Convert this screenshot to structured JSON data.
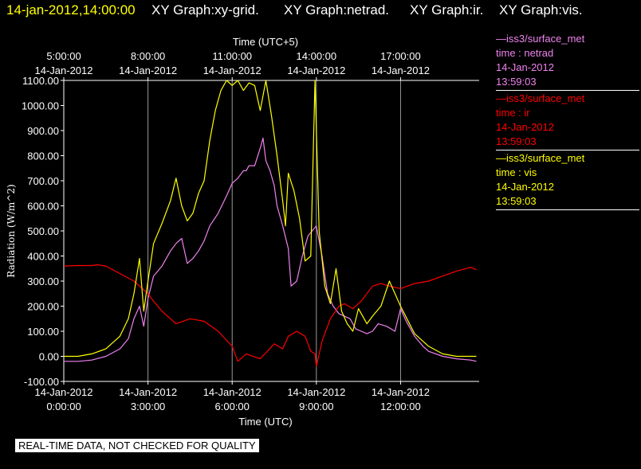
{
  "header": {
    "timestamp": "14-jan-2012,14:00:00",
    "graphs": [
      "XY Graph:xy-grid.",
      "XY Graph:netrad.",
      "XY Graph:ir.",
      "XY Graph:vis."
    ]
  },
  "legend": [
    {
      "name": "—iss3/surface_met",
      "var": "time : netrad",
      "date": "14-Jan-2012",
      "time": "13:59:03",
      "color": "#ee82ee"
    },
    {
      "name": "—iss3/surface_met",
      "var": "time : ir",
      "date": "14-Jan-2012",
      "time": "13:59:03",
      "color": "#ff0000"
    },
    {
      "name": "—iss3/surface_met",
      "var": "time : vis",
      "date": "14-Jan-2012",
      "time": "13:59:03",
      "color": "#ffff00"
    }
  ],
  "footer": {
    "note": "REAL-TIME DATA, NOT CHECKED FOR QUALITY"
  },
  "colors": {
    "background": "#000000",
    "axes": "#ffffff",
    "header_timestamp": "#ffff00",
    "header_graphs": "#ffffff"
  },
  "chart_data": {
    "type": "line",
    "xlabel": "Time (UTC)",
    "x2label": "Time (UTC+5)",
    "ylabel": "Radiation (W/m^2)",
    "xlim": [
      0,
      14.8
    ],
    "ylim": [
      -100,
      1100
    ],
    "grid": true,
    "yticks": [
      -100,
      0,
      100,
      200,
      300,
      400,
      500,
      600,
      700,
      800,
      900,
      1000,
      1100
    ],
    "ytick_labels": [
      "-100.00",
      "0.00",
      "100.00",
      "200.00",
      "300.00",
      "400.00",
      "500.00",
      "600.00",
      "700.00",
      "800.00",
      "900.00",
      "1000.00",
      "1100.00"
    ],
    "xticks": [
      {
        "x": 0,
        "date": "14-Jan-2012",
        "time": "0:00:00"
      },
      {
        "x": 3,
        "date": "14-Jan-2012",
        "time": "3:00:00"
      },
      {
        "x": 6,
        "date": "14-Jan-2012",
        "time": "6:00:00"
      },
      {
        "x": 9,
        "date": "14-Jan-2012",
        "time": "9:00:00"
      },
      {
        "x": 12,
        "date": "14-Jan-2012",
        "time": "12:00:00"
      }
    ],
    "x2ticks": [
      {
        "x": 0,
        "time": "5:00:00",
        "date": "14-Jan-2012"
      },
      {
        "x": 3,
        "time": "8:00:00",
        "date": "14-Jan-2012"
      },
      {
        "x": 6,
        "time": "11:00:00",
        "date": "14-Jan-2012"
      },
      {
        "x": 9,
        "time": "14:00:00",
        "date": "14-Jan-2012"
      },
      {
        "x": 12,
        "time": "17:00:00",
        "date": "14-Jan-2012"
      }
    ],
    "series": [
      {
        "name": "netrad",
        "color": "#ee82ee",
        "x": [
          0,
          0.5,
          1.0,
          1.5,
          2.0,
          2.3,
          2.5,
          2.7,
          2.85,
          3.0,
          3.2,
          3.5,
          3.8,
          4.0,
          4.2,
          4.4,
          4.6,
          4.8,
          5.0,
          5.2,
          5.5,
          5.8,
          6.0,
          6.2,
          6.4,
          6.5,
          6.6,
          6.8,
          7.0,
          7.1,
          7.2,
          7.35,
          7.5,
          7.6,
          7.8,
          8.0,
          8.1,
          8.3,
          8.5,
          8.7,
          8.85,
          9.0,
          9.2,
          9.4,
          9.6,
          9.8,
          10.0,
          10.2,
          10.4,
          10.6,
          10.8,
          11.0,
          11.2,
          11.5,
          11.8,
          12.0,
          12.2,
          12.5,
          12.8,
          13.0,
          13.5,
          14.0,
          14.5,
          14.7
        ],
        "y": [
          -20,
          -20,
          -15,
          0,
          30,
          70,
          150,
          200,
          120,
          230,
          320,
          360,
          420,
          450,
          470,
          370,
          390,
          420,
          460,
          520,
          570,
          640,
          690,
          710,
          740,
          740,
          760,
          760,
          830,
          870,
          780,
          740,
          680,
          600,
          520,
          430,
          280,
          300,
          400,
          480,
          500,
          520,
          400,
          250,
          200,
          170,
          160,
          150,
          110,
          100,
          90,
          100,
          130,
          120,
          100,
          190,
          140,
          80,
          40,
          20,
          0,
          -10,
          -15,
          -20
        ]
      },
      {
        "name": "ir",
        "color": "#ff0000",
        "x": [
          0,
          0.5,
          1.0,
          1.2,
          1.5,
          2.0,
          2.5,
          2.8,
          3.0,
          3.2,
          3.5,
          4.0,
          4.5,
          5.0,
          5.5,
          6.0,
          6.2,
          6.5,
          7.0,
          7.5,
          7.8,
          8.0,
          8.3,
          8.6,
          8.8,
          8.95,
          9.0,
          9.2,
          9.5,
          9.8,
          10.0,
          10.3,
          10.6,
          11.0,
          11.3,
          11.6,
          12.0,
          12.5,
          13.0,
          13.5,
          14.0,
          14.5,
          14.7
        ],
        "y": [
          360,
          362,
          362,
          365,
          360,
          330,
          300,
          270,
          250,
          220,
          180,
          130,
          150,
          140,
          100,
          40,
          -20,
          10,
          -10,
          50,
          30,
          80,
          100,
          80,
          20,
          10,
          -40,
          60,
          150,
          200,
          210,
          190,
          220,
          280,
          290,
          280,
          270,
          290,
          300,
          320,
          340,
          355,
          345
        ]
      },
      {
        "name": "vis",
        "color": "#ffff00",
        "x": [
          0,
          0.5,
          1.0,
          1.5,
          2.0,
          2.3,
          2.5,
          2.7,
          2.85,
          3.0,
          3.2,
          3.5,
          3.8,
          4.0,
          4.2,
          4.4,
          4.6,
          4.8,
          5.0,
          5.2,
          5.4,
          5.6,
          5.8,
          6.0,
          6.2,
          6.4,
          6.6,
          6.8,
          7.0,
          7.2,
          7.4,
          7.6,
          7.8,
          7.9,
          8.0,
          8.2,
          8.4,
          8.6,
          8.8,
          8.95,
          9.1,
          9.3,
          9.5,
          9.7,
          9.9,
          10.1,
          10.3,
          10.5,
          10.8,
          11.0,
          11.3,
          11.6,
          12.0,
          12.5,
          13.0,
          13.5,
          14.0,
          14.5,
          14.7
        ],
        "y": [
          0,
          0,
          10,
          30,
          80,
          150,
          250,
          390,
          180,
          300,
          450,
          530,
          620,
          710,
          600,
          540,
          570,
          650,
          700,
          860,
          980,
          1060,
          1100,
          1080,
          1100,
          1060,
          1090,
          1080,
          980,
          1100,
          960,
          800,
          620,
          520,
          730,
          660,
          550,
          380,
          400,
          1100,
          500,
          280,
          210,
          350,
          180,
          130,
          100,
          190,
          130,
          160,
          200,
          300,
          200,
          90,
          40,
          10,
          0,
          0,
          0
        ]
      }
    ]
  }
}
